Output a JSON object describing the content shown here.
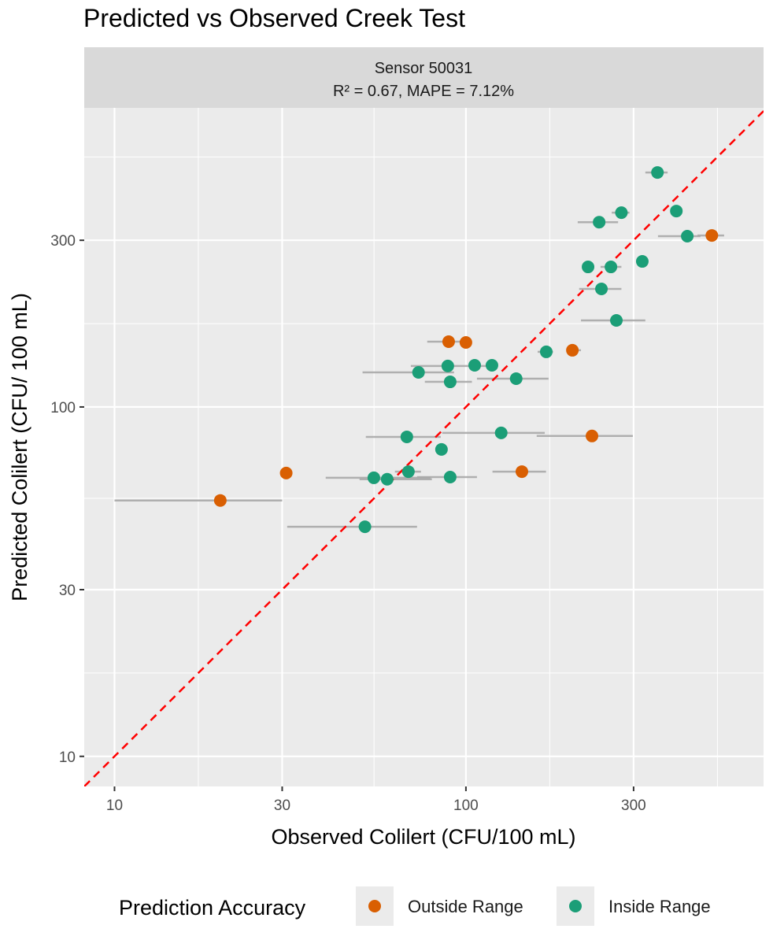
{
  "title": "Predicted vs Observed Creek Test",
  "facet": {
    "line1": "Sensor 50031",
    "line2": "R² = 0.67, MAPE = 7.12%"
  },
  "colors": {
    "outside": "#D95F02",
    "inside": "#1B9E77",
    "reference_line": "#FF0000",
    "error_bar": "#A8A8A8",
    "panel": "#EBEBEB",
    "strip": "#D9D9D9"
  },
  "legend": {
    "title": "Prediction Accuracy",
    "items": [
      {
        "key": "outside",
        "label": "Outside Range"
      },
      {
        "key": "inside",
        "label": "Inside Range"
      }
    ],
    "placement": "bottom"
  },
  "chart_data": {
    "type": "scatter",
    "title": "Predicted vs Observed Creek Test",
    "xlabel": "Observed Colilert (CFU/100 mL)",
    "ylabel": "Predicted Colilert (CFU/ 100 mL)",
    "x_scale": "log10",
    "y_scale": "log10",
    "xlim": [
      8.2,
      703
    ],
    "ylim": [
      8.2,
      718
    ],
    "x_ticks": [
      10,
      30,
      100,
      300
    ],
    "y_ticks": [
      10,
      30,
      100,
      300
    ],
    "grid": true,
    "reference_line": "y = x (dashed)",
    "points": [
      {
        "obs": 20,
        "pred": 54,
        "obs_low": 10,
        "obs_high": 30,
        "group": "outside"
      },
      {
        "obs": 30.8,
        "pred": 64.7,
        "group": "outside"
      },
      {
        "obs": 51.6,
        "pred": 45.4,
        "obs_low": 31,
        "obs_high": 72.6,
        "group": "inside"
      },
      {
        "obs": 54.7,
        "pred": 62.7,
        "obs_low": 39.9,
        "obs_high": 79.3,
        "group": "inside"
      },
      {
        "obs": 59.7,
        "pred": 62.1,
        "obs_low": 49.8,
        "obs_high": 80,
        "group": "inside"
      },
      {
        "obs": 68.6,
        "pred": 65.3,
        "obs_low": 62.8,
        "obs_high": 74.5,
        "group": "inside"
      },
      {
        "obs": 67.9,
        "pred": 82.1,
        "obs_low": 51.9,
        "obs_high": 84.8,
        "group": "inside"
      },
      {
        "obs": 73.3,
        "pred": 125.6,
        "obs_low": 50.8,
        "obs_high": 92.5,
        "group": "inside"
      },
      {
        "obs": 85.2,
        "pred": 75.6,
        "group": "inside"
      },
      {
        "obs": 90.2,
        "pred": 63,
        "obs_low": 72.6,
        "obs_high": 107.5,
        "group": "inside"
      },
      {
        "obs": 89.3,
        "pred": 153.8,
        "obs_low": 77.6,
        "obs_high": 99,
        "group": "outside"
      },
      {
        "obs": 100,
        "pred": 153,
        "group": "outside"
      },
      {
        "obs": 88.8,
        "pred": 131,
        "obs_low": 69.7,
        "obs_high": 115.6,
        "group": "inside"
      },
      {
        "obs": 105.9,
        "pred": 131.6,
        "group": "inside"
      },
      {
        "obs": 118.6,
        "pred": 131.6,
        "group": "inside"
      },
      {
        "obs": 90.2,
        "pred": 118,
        "obs_low": 76.4,
        "obs_high": 104,
        "group": "inside"
      },
      {
        "obs": 139,
        "pred": 120.5,
        "obs_low": 107.5,
        "obs_high": 171.8,
        "group": "inside"
      },
      {
        "obs": 126,
        "pred": 84.3,
        "obs_low": 85.6,
        "obs_high": 167.6,
        "group": "inside"
      },
      {
        "obs": 144.3,
        "pred": 65.3,
        "obs_low": 119,
        "obs_high": 169,
        "group": "outside"
      },
      {
        "obs": 169.3,
        "pred": 143.8,
        "obs_low": 160,
        "obs_high": 177,
        "group": "inside"
      },
      {
        "obs": 200.9,
        "pred": 145.3,
        "obs_low": 193.6,
        "obs_high": 212.5,
        "group": "outside"
      },
      {
        "obs": 228.4,
        "pred": 82.6,
        "obs_low": 159,
        "obs_high": 298.5,
        "group": "outside"
      },
      {
        "obs": 268,
        "pred": 176.9,
        "obs_low": 212.5,
        "obs_high": 324,
        "group": "inside"
      },
      {
        "obs": 243,
        "pred": 217.7,
        "obs_low": 210,
        "obs_high": 277,
        "group": "inside"
      },
      {
        "obs": 222.6,
        "pred": 251.7,
        "group": "inside"
      },
      {
        "obs": 258.6,
        "pred": 251.7,
        "obs_low": 241.6,
        "obs_high": 277,
        "group": "inside"
      },
      {
        "obs": 317.6,
        "pred": 261,
        "group": "inside"
      },
      {
        "obs": 239.4,
        "pred": 338,
        "obs_low": 208,
        "obs_high": 271,
        "group": "inside"
      },
      {
        "obs": 277,
        "pred": 359.9,
        "obs_low": 260,
        "obs_high": 292,
        "group": "inside"
      },
      {
        "obs": 397,
        "pred": 363.7,
        "group": "inside"
      },
      {
        "obs": 426.5,
        "pred": 308.2,
        "obs_low": 352,
        "obs_high": 465,
        "group": "inside"
      },
      {
        "obs": 501,
        "pred": 309.7,
        "obs_low": 456,
        "obs_high": 543,
        "group": "outside"
      },
      {
        "obs": 350.8,
        "pred": 469,
        "obs_low": 324,
        "obs_high": 375,
        "group": "inside"
      }
    ]
  }
}
